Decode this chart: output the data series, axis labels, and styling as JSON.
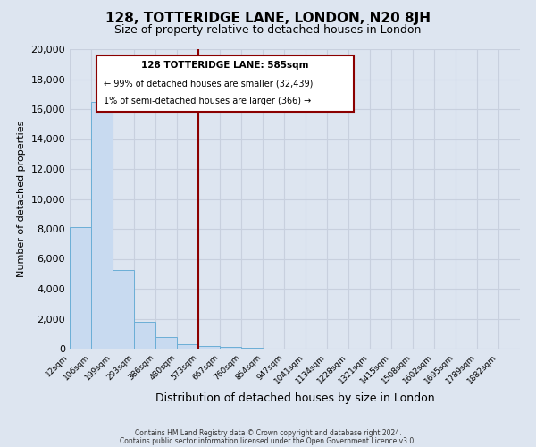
{
  "title": "128, TOTTERIDGE LANE, LONDON, N20 8JH",
  "subtitle": "Size of property relative to detached houses in London",
  "xlabel": "Distribution of detached houses by size in London",
  "ylabel": "Number of detached properties",
  "bin_labels": [
    "12sqm",
    "106sqm",
    "199sqm",
    "293sqm",
    "386sqm",
    "480sqm",
    "573sqm",
    "667sqm",
    "760sqm",
    "854sqm",
    "947sqm",
    "1041sqm",
    "1134sqm",
    "1228sqm",
    "1321sqm",
    "1415sqm",
    "1508sqm",
    "1602sqm",
    "1695sqm",
    "1789sqm",
    "1882sqm"
  ],
  "bar_heights": [
    8100,
    16500,
    5250,
    1800,
    750,
    300,
    150,
    100,
    80,
    0,
    0,
    0,
    0,
    0,
    0,
    0,
    0,
    0,
    0,
    0,
    0
  ],
  "bar_color": "#c8daf0",
  "bar_edge_color": "#6baed6",
  "vline_x_index": 6,
  "vline_color": "#8b0000",
  "ylim": [
    0,
    20000
  ],
  "yticks": [
    0,
    2000,
    4000,
    6000,
    8000,
    10000,
    12000,
    14000,
    16000,
    18000,
    20000
  ],
  "annotation_title": "128 TOTTERIDGE LANE: 585sqm",
  "annotation_line1": "← 99% of detached houses are smaller (32,439)",
  "annotation_line2": "1% of semi-detached houses are larger (366) →",
  "annotation_box_color": "#ffffff",
  "annotation_box_edge": "#8b0000",
  "footer1": "Contains HM Land Registry data © Crown copyright and database right 2024.",
  "footer2": "Contains public sector information licensed under the Open Government Licence v3.0.",
  "bg_color": "#dde5f0",
  "grid_color": "#c8d0de"
}
